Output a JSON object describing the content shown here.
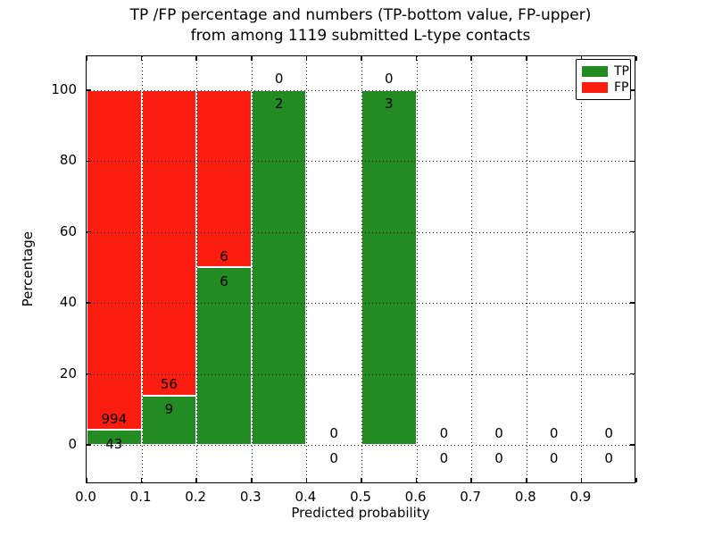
{
  "figure": {
    "title_line1": "TP /FP percentage and numbers (TP-bottom value, FP-upper)",
    "title_line2": "from among 1119 submitted L-type contacts"
  },
  "chart_data": {
    "type": "bar",
    "subtype": "stacked-percentage",
    "title": "TP /FP percentage and numbers (TP-bottom value, FP-upper)\nfrom among 1119 submitted L-type contacts",
    "xlabel": "Predicted probability",
    "ylabel": "Percentage",
    "total_submitted_contacts": 1119,
    "bin_width": 0.1,
    "categories": [
      "0.0-0.1",
      "0.1-0.2",
      "0.2-0.3",
      "0.3-0.4",
      "0.4-0.5",
      "0.5-0.6",
      "0.6-0.7",
      "0.7-0.8",
      "0.8-0.9",
      "0.9-1.0"
    ],
    "bin_starts": [
      0.0,
      0.1,
      0.2,
      0.3,
      0.4,
      0.5,
      0.6,
      0.7,
      0.8,
      0.9
    ],
    "series": [
      {
        "name": "TP",
        "color": "#228b22",
        "counts": [
          43,
          9,
          6,
          2,
          0,
          3,
          0,
          0,
          0,
          0
        ]
      },
      {
        "name": "FP",
        "color": "#fb1d10",
        "counts": [
          994,
          56,
          6,
          0,
          0,
          0,
          0,
          0,
          0,
          0
        ]
      }
    ],
    "tp_percent_of_bin": [
      4.15,
      13.85,
      50.0,
      100.0,
      null,
      100.0,
      null,
      null,
      null,
      null
    ],
    "annotation_note": "TP-bottom value, FP-upper",
    "x_tick_labels": [
      "0.0",
      "0.1",
      "0.2",
      "0.3",
      "0.4",
      "0.5",
      "0.6",
      "0.7",
      "0.8",
      "0.9"
    ],
    "y_tick_labels": [
      "0",
      "20",
      "40",
      "60",
      "80",
      "100"
    ],
    "y_ticks": [
      0,
      20,
      40,
      60,
      80,
      100
    ],
    "xlim": [
      0,
      1
    ],
    "ylim": [
      -11.1,
      109.55
    ],
    "grid": "dotted",
    "legend": {
      "position": "upper right",
      "entries": [
        {
          "label": "TP",
          "color": "#228b22"
        },
        {
          "label": "FP",
          "color": "#fb1d10"
        }
      ]
    }
  }
}
